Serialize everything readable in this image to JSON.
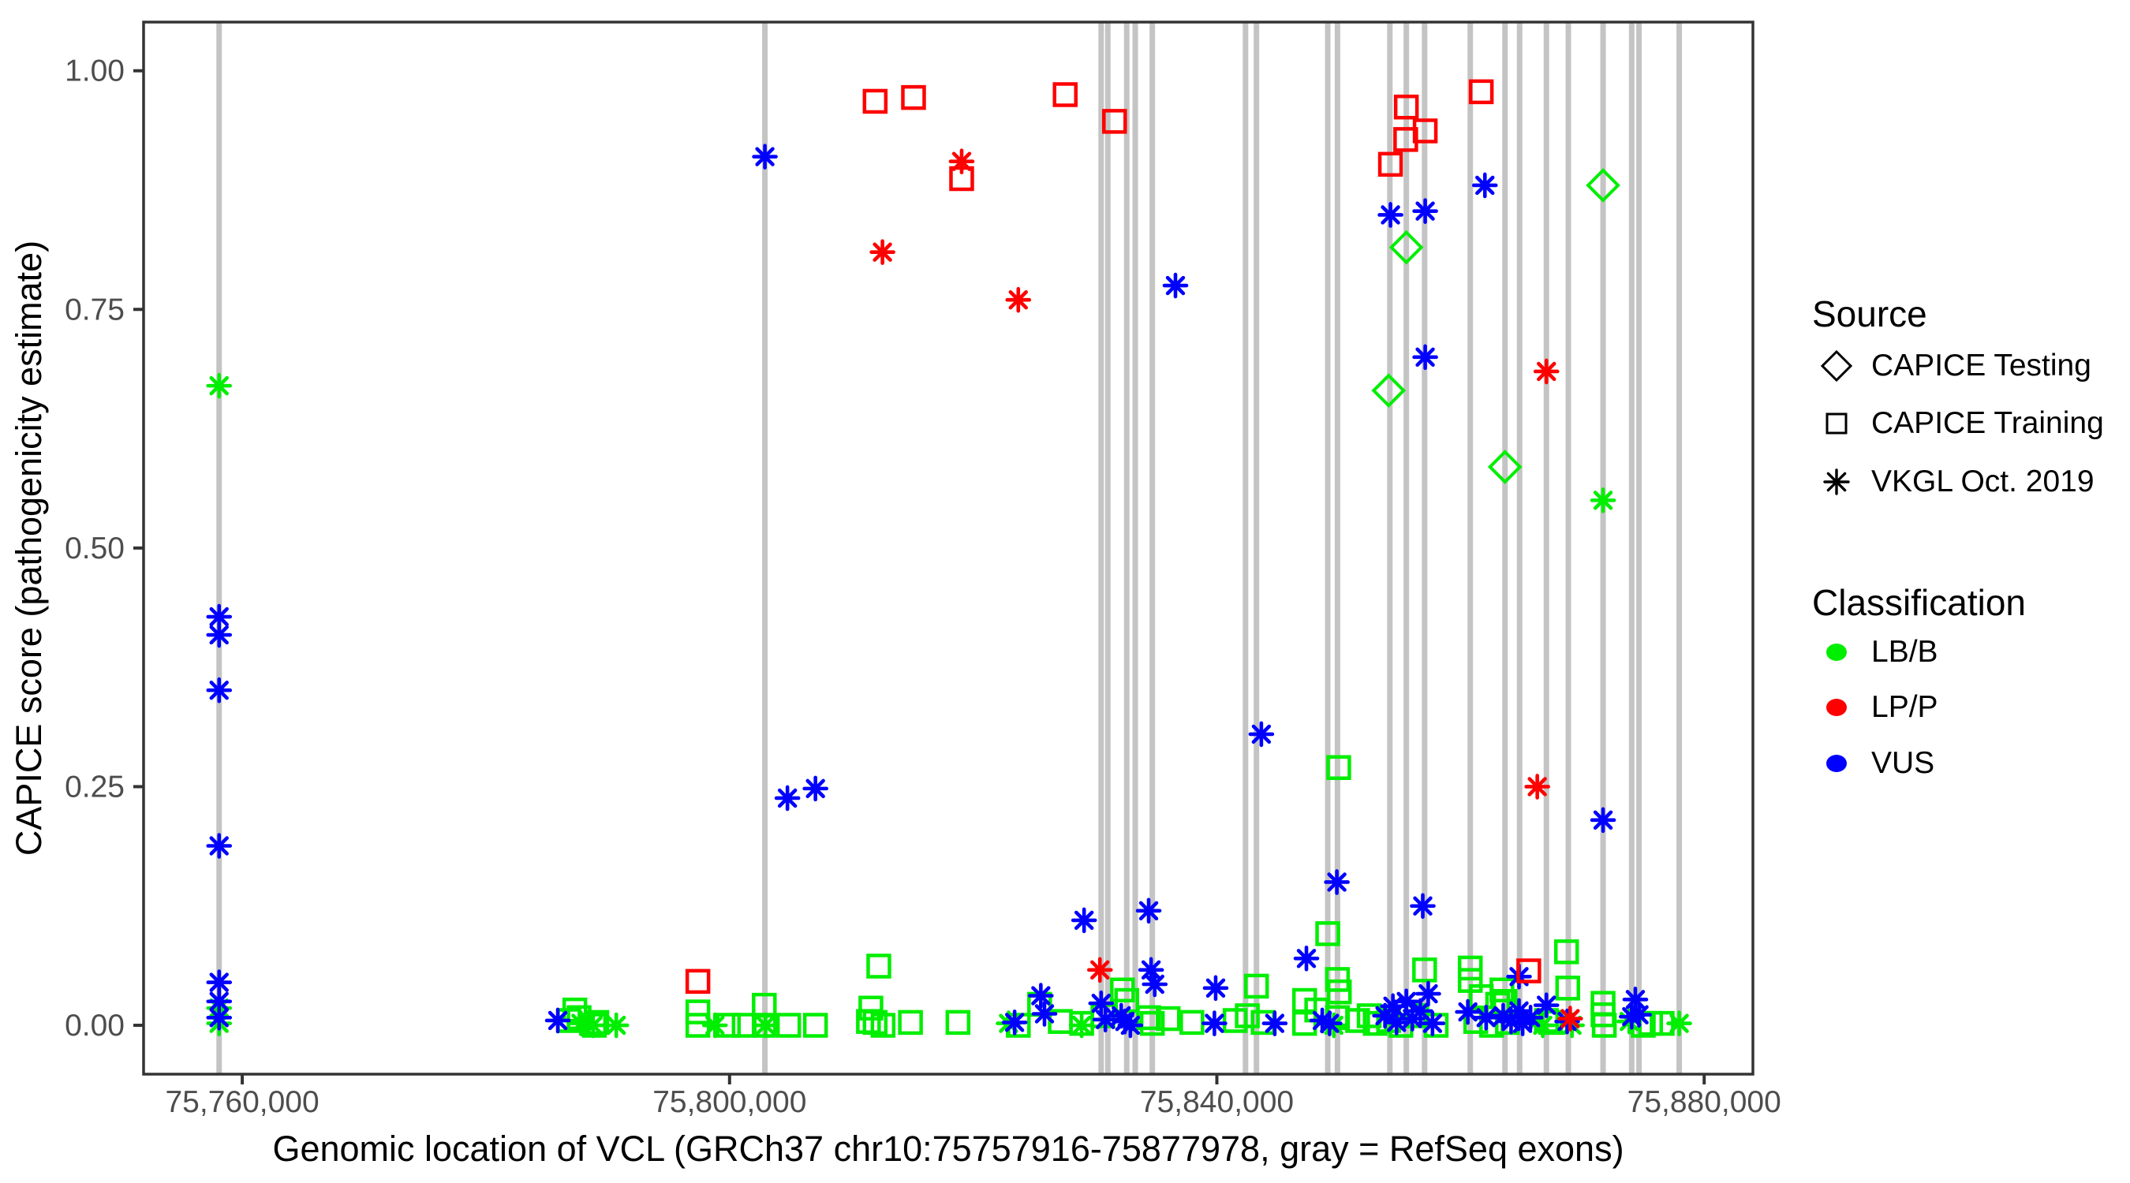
{
  "colors": {
    "lbb": "#00EE00",
    "lpp": "#FF0000",
    "vus": "#0000FF",
    "exon_line": "#C4C4C4",
    "panel_border": "#333333",
    "tick_text": "#4D4D4D",
    "axis_title": "#000000"
  },
  "legend": {
    "source": {
      "title": "Source",
      "items": [
        {
          "label": "CAPICE Testing",
          "marker": "diamond"
        },
        {
          "label": "CAPICE Training",
          "marker": "square"
        },
        {
          "label": "VKGL Oct. 2019",
          "marker": "asterisk"
        }
      ]
    },
    "classification": {
      "title": "Classification",
      "items": [
        {
          "label": "LB/B",
          "color": "#00EE00"
        },
        {
          "label": "LP/P",
          "color": "#FF0000"
        },
        {
          "label": "VUS",
          "color": "#0000FF"
        }
      ]
    }
  },
  "chart_data": {
    "type": "scatter",
    "title": "",
    "xlabel": "Genomic location of VCL (GRCh37 chr10:75757916-75877978, gray = RefSeq exons)",
    "ylabel": "CAPICE score (pathogenicity estimate)",
    "xlim": [
      75751900,
      75884000
    ],
    "ylim": [
      -0.0512,
      1.051
    ],
    "grid": false,
    "legend_position": "right",
    "x_ticks": [
      {
        "value": 75760000,
        "label": "75,760,000"
      },
      {
        "value": 75800000,
        "label": "75,800,000"
      },
      {
        "value": 75840000,
        "label": "75,840,000"
      },
      {
        "value": 75880000,
        "label": "75,880,000"
      }
    ],
    "y_ticks": [
      {
        "value": 0.0,
        "label": "0.00"
      },
      {
        "value": 0.25,
        "label": "0.25"
      },
      {
        "value": 0.5,
        "label": "0.50"
      },
      {
        "value": 0.75,
        "label": "0.75"
      },
      {
        "value": 1.0,
        "label": "1.00"
      }
    ],
    "refseq_exons_bp": [
      75758100,
      75802900,
      75830500,
      75831050,
      75832600,
      75833300,
      75834700,
      75842350,
      75843250,
      75849100,
      75849900,
      75854200,
      75855550,
      75857050,
      75860800,
      75863650,
      75864850,
      75867050,
      75868850,
      75871700,
      75874050,
      75874650,
      75877950
    ],
    "series": [
      {
        "name": "CAPICE Training / LB/B",
        "source": "CAPICE Training",
        "classification": "LB/B",
        "marker": "square",
        "color": "#00EE00",
        "points": [
          [
            75786800,
            0.005
          ],
          [
            75787300,
            0.016
          ],
          [
            75787650,
            0.008
          ],
          [
            75789100,
            0.003
          ],
          [
            75788900,
            0.0
          ],
          [
            75797400,
            0.014
          ],
          [
            75797400,
            0.0
          ],
          [
            75799900,
            0.0
          ],
          [
            75801200,
            0.0
          ],
          [
            75802850,
            0.021
          ],
          [
            75802850,
            0.0
          ],
          [
            75804850,
            0.0
          ],
          [
            75807050,
            0.0
          ],
          [
            75811400,
            0.004
          ],
          [
            75811600,
            0.018
          ],
          [
            75811950,
            0.003
          ],
          [
            75812600,
            0.0
          ],
          [
            75812250,
            0.062
          ],
          [
            75814850,
            0.003
          ],
          [
            75818750,
            0.003
          ],
          [
            75823700,
            0.0
          ],
          [
            75825450,
            0.022
          ],
          [
            75827150,
            0.004
          ],
          [
            75828900,
            0.002
          ],
          [
            75830650,
            0.01
          ],
          [
            75832250,
            0.037
          ],
          [
            75832600,
            0.026
          ],
          [
            75834400,
            0.008
          ],
          [
            75834700,
            0.002
          ],
          [
            75836000,
            0.007
          ],
          [
            75837950,
            0.003
          ],
          [
            75841500,
            0.005
          ],
          [
            75842500,
            0.01
          ],
          [
            75843250,
            0.041
          ],
          [
            75843800,
            0.003
          ],
          [
            75847200,
            0.026
          ],
          [
            75847200,
            0.002
          ],
          [
            75848200,
            0.016
          ],
          [
            75849100,
            0.096
          ],
          [
            75849900,
            0.048
          ],
          [
            75850050,
            0.035
          ],
          [
            75850000,
            0.27
          ],
          [
            75849900,
            0.008
          ],
          [
            75851550,
            0.005
          ],
          [
            75852500,
            0.01
          ],
          [
            75853000,
            0.002
          ],
          [
            75854100,
            0.005
          ],
          [
            75855100,
            0.0
          ],
          [
            75856400,
            0.01
          ],
          [
            75857050,
            0.058
          ],
          [
            75858000,
            0.0
          ],
          [
            75860800,
            0.06
          ],
          [
            75860800,
            0.047
          ],
          [
            75861700,
            0.03
          ],
          [
            75861250,
            0.004
          ],
          [
            75862550,
            0.0
          ],
          [
            75863400,
            0.037
          ],
          [
            75863650,
            0.025
          ],
          [
            75863050,
            0.022
          ],
          [
            75863850,
            0.003
          ],
          [
            75867050,
            0.005
          ],
          [
            75867400,
            0.003
          ],
          [
            75868700,
            0.077
          ],
          [
            75868800,
            0.039
          ],
          [
            75871700,
            0.023
          ],
          [
            75871700,
            0.011
          ],
          [
            75871800,
            0.0
          ],
          [
            75875000,
            0.0
          ],
          [
            75875600,
            0.002
          ],
          [
            75876550,
            0.002
          ]
        ]
      },
      {
        "name": "VKGL Oct. 2019 / LB/B",
        "source": "VKGL Oct. 2019",
        "classification": "LB/B",
        "marker": "asterisk",
        "color": "#00EE00",
        "points": [
          [
            75758100,
            0.67
          ],
          [
            75758100,
            0.018
          ],
          [
            75758100,
            0.002
          ],
          [
            75787800,
            0.002
          ],
          [
            75788800,
            0.0
          ],
          [
            75790700,
            0.0
          ],
          [
            75798800,
            0.0
          ],
          [
            75802950,
            0.0
          ],
          [
            75822900,
            0.002
          ],
          [
            75828900,
            0.0
          ],
          [
            75849600,
            0.0
          ],
          [
            75866750,
            0.0
          ],
          [
            75869150,
            0.0
          ],
          [
            75873850,
            0.004
          ],
          [
            75877950,
            0.002
          ],
          [
            75871700,
            0.55
          ]
        ]
      },
      {
        "name": "VKGL Oct. 2019 / VUS",
        "source": "VKGL Oct. 2019",
        "classification": "VUS",
        "marker": "asterisk",
        "color": "#0000FF",
        "points": [
          [
            75758100,
            0.428
          ],
          [
            75758100,
            0.409
          ],
          [
            75758100,
            0.351
          ],
          [
            75758100,
            0.188
          ],
          [
            75758100,
            0.045
          ],
          [
            75758100,
            0.025
          ],
          [
            75758100,
            0.008
          ],
          [
            75785900,
            0.005
          ],
          [
            75802900,
            0.91
          ],
          [
            75804750,
            0.238
          ],
          [
            75807050,
            0.248
          ],
          [
            75823400,
            0.003
          ],
          [
            75825550,
            0.031
          ],
          [
            75825850,
            0.012
          ],
          [
            75829100,
            0.11
          ],
          [
            75830500,
            0.023
          ],
          [
            75830850,
            0.006
          ],
          [
            75832150,
            0.01
          ],
          [
            75832450,
            0.004
          ],
          [
            75832900,
            0.0
          ],
          [
            75834400,
            0.12
          ],
          [
            75834600,
            0.058
          ],
          [
            75834900,
            0.043
          ],
          [
            75836600,
            0.775
          ],
          [
            75839900,
            0.039
          ],
          [
            75839800,
            0.002
          ],
          [
            75843650,
            0.305
          ],
          [
            75844750,
            0.002
          ],
          [
            75847350,
            0.07
          ],
          [
            75848650,
            0.005
          ],
          [
            75849250,
            0.002
          ],
          [
            75849850,
            0.15
          ],
          [
            75853800,
            0.01
          ],
          [
            75854450,
            0.02
          ],
          [
            75854750,
            0.003
          ],
          [
            75855550,
            0.025
          ],
          [
            75856050,
            0.007
          ],
          [
            75856700,
            0.015
          ],
          [
            75856900,
            0.125
          ],
          [
            75857350,
            0.033
          ],
          [
            75857700,
            0.002
          ],
          [
            75857100,
            0.7
          ],
          [
            75857100,
            0.853
          ],
          [
            75854250,
            0.849
          ],
          [
            75862000,
            0.88
          ],
          [
            75860600,
            0.014
          ],
          [
            75862100,
            0.008
          ],
          [
            75863500,
            0.01
          ],
          [
            75864150,
            0.004
          ],
          [
            75864800,
            0.051
          ],
          [
            75864800,
            0.015
          ],
          [
            75865100,
            0.002
          ],
          [
            75865750,
            0.008
          ],
          [
            75867050,
            0.021
          ],
          [
            75868750,
            0.004
          ],
          [
            75871700,
            0.215
          ],
          [
            75874050,
            0.009
          ],
          [
            75874350,
            0.027
          ],
          [
            75874650,
            0.011
          ]
        ]
      },
      {
        "name": "CAPICE Training / LP/P",
        "source": "CAPICE Training",
        "classification": "LP/P",
        "marker": "square",
        "color": "#FF0000",
        "points": [
          [
            75797400,
            0.046
          ],
          [
            75811950,
            0.968
          ],
          [
            75815100,
            0.972
          ],
          [
            75819050,
            0.887
          ],
          [
            75827550,
            0.975
          ],
          [
            75831600,
            0.947
          ],
          [
            75854250,
            0.902
          ],
          [
            75855500,
            0.928
          ],
          [
            75855550,
            0.962
          ],
          [
            75857100,
            0.937
          ],
          [
            75861700,
            0.978
          ],
          [
            75865600,
            0.057
          ]
        ]
      },
      {
        "name": "VKGL Oct. 2019 / LP/P",
        "source": "VKGL Oct. 2019",
        "classification": "LP/P",
        "marker": "asterisk",
        "color": "#FF0000",
        "points": [
          [
            75812550,
            0.81
          ],
          [
            75819050,
            0.905
          ],
          [
            75823700,
            0.76
          ],
          [
            75830400,
            0.058
          ],
          [
            75867050,
            0.685
          ],
          [
            75866300,
            0.25
          ],
          [
            75869000,
            0.007
          ]
        ]
      },
      {
        "name": "CAPICE Testing / LB/B",
        "source": "CAPICE Testing",
        "classification": "LB/B",
        "marker": "diamond",
        "color": "#00EE00",
        "points": [
          [
            75854100,
            0.665
          ],
          [
            75855550,
            0.815
          ],
          [
            75863650,
            0.585
          ],
          [
            75871700,
            0.88
          ]
        ]
      }
    ]
  }
}
